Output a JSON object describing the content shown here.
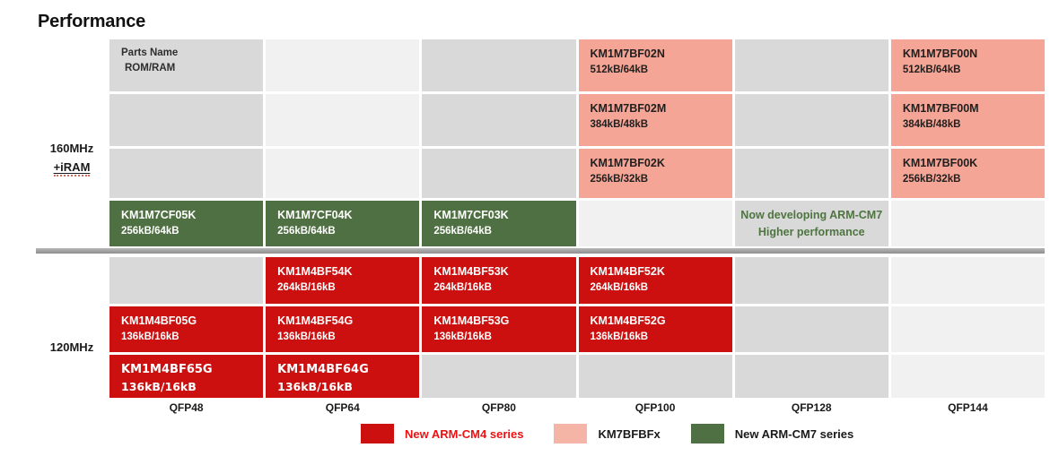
{
  "title": "Performance",
  "axis": {
    "row_groups": [
      {
        "label_lines": [
          "160MHz",
          "+iRAM"
        ]
      },
      {
        "label_lines": [
          "120MHz"
        ]
      }
    ],
    "columns": [
      "QFP48",
      "QFP64",
      "QFP80",
      "QFP100",
      "QFP128",
      "QFP144"
    ]
  },
  "colors": {
    "red": "#CC1010",
    "pink": "#F4A595",
    "legend_pink": "#F5B5A6",
    "green": "#4F7042",
    "gray_dark": "#D9D9D9",
    "gray_light": "#F1F1F1",
    "note_text": "#4E7540",
    "legend_red_text": "#EE1111",
    "text_dark": "#1F1F1F"
  },
  "grid": {
    "top_rows": [
      [
        {
          "c": "dark",
          "header": [
            "Parts Name",
            "ROM/RAM"
          ]
        },
        {
          "c": "light"
        },
        {
          "c": "dark"
        },
        {
          "c": "pink",
          "part": "KM1M7BF02N",
          "size": "512kB/64kB"
        },
        {
          "c": "dark"
        },
        {
          "c": "pink",
          "part": "KM1M7BF00N",
          "size": "512kB/64kB"
        }
      ],
      [
        {
          "c": "dark"
        },
        {
          "c": "light"
        },
        {
          "c": "dark"
        },
        {
          "c": "pink",
          "part": "KM1M7BF02M",
          "size": "384kB/48kB"
        },
        {
          "c": "dark"
        },
        {
          "c": "pink",
          "part": "KM1M7BF00M",
          "size": "384kB/48kB"
        }
      ],
      [
        {
          "c": "dark"
        },
        {
          "c": "light"
        },
        {
          "c": "dark"
        },
        {
          "c": "pink",
          "part": "KM1M7BF02K",
          "size": "256kB/32kB"
        },
        {
          "c": "dark"
        },
        {
          "c": "pink",
          "part": "KM1M7BF00K",
          "size": "256kB/32kB"
        }
      ],
      [
        {
          "c": "green",
          "part": "KM1M7CF05K",
          "size": "256kB/64kB"
        },
        {
          "c": "green",
          "part": "KM1M7CF04K",
          "size": "256kB/64kB"
        },
        {
          "c": "green",
          "part": "KM1M7CF03K",
          "size": "256kB/64kB"
        },
        {
          "c": "light"
        },
        {
          "c": "dark",
          "note": [
            "Now developing ARM-CM7",
            "Higher performance"
          ]
        },
        {
          "c": "light"
        }
      ]
    ],
    "bottom_rows": [
      [
        {
          "c": "dark"
        },
        {
          "c": "red",
          "part": "KM1M4BF54K",
          "size": "264kB/16kB"
        },
        {
          "c": "red",
          "part": "KM1M4BF53K",
          "size": "264kB/16kB"
        },
        {
          "c": "red",
          "part": "KM1M4BF52K",
          "size": "264kB/16kB"
        },
        {
          "c": "dark"
        },
        {
          "c": "light"
        }
      ],
      [
        {
          "c": "red",
          "part": "KM1M4BF05G",
          "size": "136kB/16kB"
        },
        {
          "c": "red",
          "part": "KM1M4BF54G",
          "size": "136kB/16kB"
        },
        {
          "c": "red",
          "part": "KM1M4BF53G",
          "size": "136kB/16kB"
        },
        {
          "c": "red",
          "part": "KM1M4BF52G",
          "size": "136kB/16kB"
        },
        {
          "c": "dark"
        },
        {
          "c": "light"
        }
      ],
      [
        {
          "c": "red",
          "part": "KM1M4BF65G",
          "size": "136kB/16kB",
          "alt": true
        },
        {
          "c": "red",
          "part": "KM1M4BF64G",
          "size": "136kB/16kB",
          "alt": true
        },
        {
          "c": "dark"
        },
        {
          "c": "dark"
        },
        {
          "c": "dark"
        },
        {
          "c": "light"
        }
      ]
    ]
  },
  "legend": {
    "items": [
      {
        "swatch": "red",
        "label": "New ARM-CM4 series",
        "label_color": "red"
      },
      {
        "swatch": "pink",
        "label": "KM7BFBFx",
        "label_color": "dark"
      },
      {
        "swatch": "green",
        "label": "New ARM-CM7 series",
        "label_color": "dark"
      }
    ]
  }
}
